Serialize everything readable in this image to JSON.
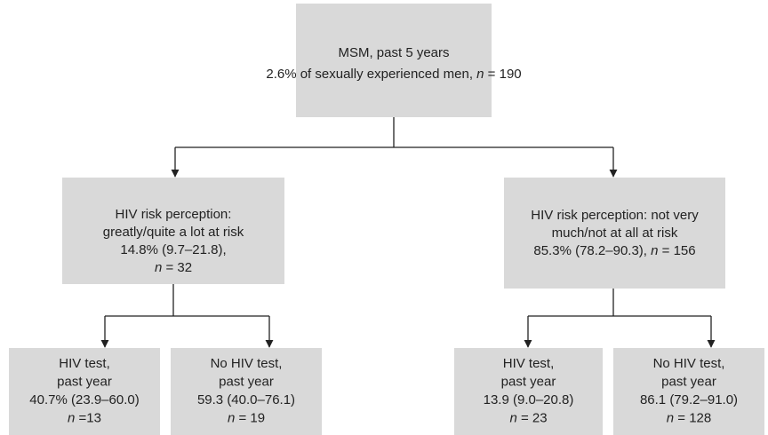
{
  "nodes": [
    {
      "lines": [
        "MSM, past 5 years",
        "2.6% of sexually experienced men, n = 190"
      ]
    },
    {
      "lines": [
        "HIV risk perception:",
        "greatly/quite a lot at risk",
        "14.8% (9.7–21.8),",
        "n = 32"
      ]
    },
    {
      "lines": [
        "HIV risk perception: not very",
        "much/not at all at risk",
        "85.3% (78.2–90.3), n = 156"
      ]
    },
    {
      "lines": [
        "HIV test,",
        "past year",
        "40.7% (23.9–60.0)",
        "n =13"
      ]
    },
    {
      "lines": [
        "No HIV test,",
        "past year",
        "59.3 (40.0–76.1)",
        "n = 19"
      ]
    },
    {
      "lines": [
        "HIV test,",
        "past year",
        "13.9 (9.0–20.8)",
        "n = 23"
      ]
    },
    {
      "lines": [
        "No HIV test,",
        "past year",
        "86.1 (79.2–91.0)",
        "n = 128"
      ]
    }
  ]
}
